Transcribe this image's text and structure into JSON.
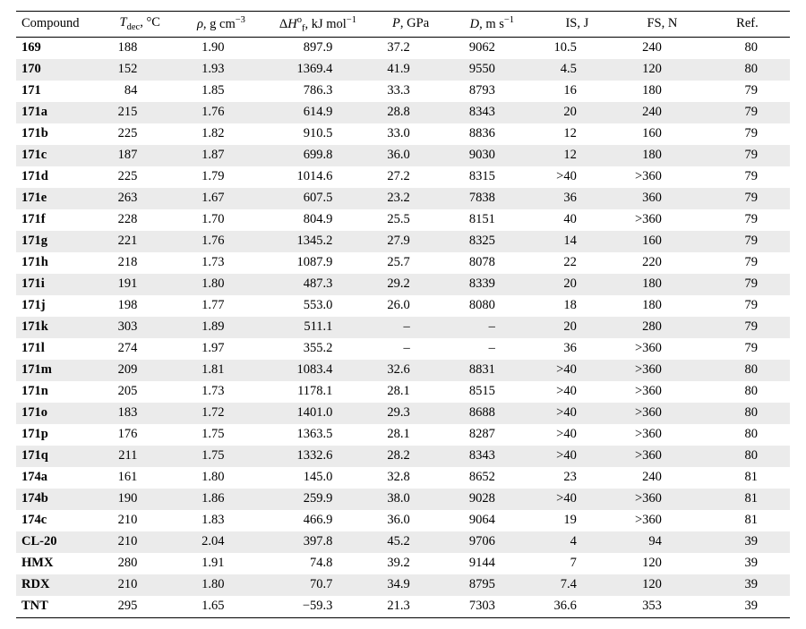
{
  "table": {
    "font_family": "Times New Roman",
    "font_size_pt": 11,
    "background_color": "#ffffff",
    "row_shade_color": "#ebebeb",
    "rule_color": "#000000",
    "columns": [
      {
        "key": "compound",
        "label_html": "Compound",
        "align": "left",
        "bold_cells": true
      },
      {
        "key": "tdec",
        "label_html": "<i>T</i><span class=\"sub\">dec</span>, °C"
      },
      {
        "key": "rho",
        "label_html": "<i>ρ</i>, g cm<span class=\"sup\">−3</span>"
      },
      {
        "key": "dhf",
        "label_html": "Δ<i>H</i><span class=\"sup\">o</span><span class=\"sub\">f</span>, kJ mol<span class=\"sup\">−1</span>"
      },
      {
        "key": "p",
        "label_html": "<i>P</i>, GPa"
      },
      {
        "key": "d",
        "label_html": "<i>D</i>, m s<span class=\"sup\">−1</span>"
      },
      {
        "key": "is",
        "label_html": "IS, J"
      },
      {
        "key": "fs",
        "label_html": "FS, N"
      },
      {
        "key": "ref",
        "label_html": "Ref."
      }
    ],
    "rows": [
      {
        "compound": "169",
        "tdec": "188",
        "rho": "1.90",
        "dhf": "897.9",
        "p": "37.2",
        "d": "9062",
        "is": "10.5",
        "fs": "240",
        "ref": "80"
      },
      {
        "compound": "170",
        "tdec": "152",
        "rho": "1.93",
        "dhf": "1369.4",
        "p": "41.9",
        "d": "9550",
        "is": "4.5",
        "fs": "120",
        "ref": "80"
      },
      {
        "compound": "171",
        "tdec": "84",
        "rho": "1.85",
        "dhf": "786.3",
        "p": "33.3",
        "d": "8793",
        "is": "16",
        "fs": "180",
        "ref": "79"
      },
      {
        "compound": "171a",
        "tdec": "215",
        "rho": "1.76",
        "dhf": "614.9",
        "p": "28.8",
        "d": "8343",
        "is": "20",
        "fs": "240",
        "ref": "79"
      },
      {
        "compound": "171b",
        "tdec": "225",
        "rho": "1.82",
        "dhf": "910.5",
        "p": "33.0",
        "d": "8836",
        "is": "12",
        "fs": "160",
        "ref": "79"
      },
      {
        "compound": "171c",
        "tdec": "187",
        "rho": "1.87",
        "dhf": "699.8",
        "p": "36.0",
        "d": "9030",
        "is": "12",
        "fs": "180",
        "ref": "79"
      },
      {
        "compound": "171d",
        "tdec": "225",
        "rho": "1.79",
        "dhf": "1014.6",
        "p": "27.2",
        "d": "8315",
        "is": ">40",
        "fs": ">360",
        "ref": "79"
      },
      {
        "compound": "171e",
        "tdec": "263",
        "rho": "1.67",
        "dhf": "607.5",
        "p": "23.2",
        "d": "7838",
        "is": "36",
        "fs": "360",
        "ref": "79"
      },
      {
        "compound": "171f",
        "tdec": "228",
        "rho": "1.70",
        "dhf": "804.9",
        "p": "25.5",
        "d": "8151",
        "is": "40",
        "fs": ">360",
        "ref": "79"
      },
      {
        "compound": "171g",
        "tdec": "221",
        "rho": "1.76",
        "dhf": "1345.2",
        "p": "27.9",
        "d": "8325",
        "is": "14",
        "fs": "160",
        "ref": "79"
      },
      {
        "compound": "171h",
        "tdec": "218",
        "rho": "1.73",
        "dhf": "1087.9",
        "p": "25.7",
        "d": "8078",
        "is": "22",
        "fs": "220",
        "ref": "79"
      },
      {
        "compound": "171i",
        "tdec": "191",
        "rho": "1.80",
        "dhf": "487.3",
        "p": "29.2",
        "d": "8339",
        "is": "20",
        "fs": "180",
        "ref": "79"
      },
      {
        "compound": "171j",
        "tdec": "198",
        "rho": "1.77",
        "dhf": "553.0",
        "p": "26.0",
        "d": "8080",
        "is": "18",
        "fs": "180",
        "ref": "79"
      },
      {
        "compound": "171k",
        "tdec": "303",
        "rho": "1.89",
        "dhf": "511.1",
        "p": "–",
        "d": "–",
        "is": "20",
        "fs": "280",
        "ref": "79"
      },
      {
        "compound": "171l",
        "tdec": "274",
        "rho": "1.97",
        "dhf": "355.2",
        "p": "–",
        "d": "–",
        "is": "36",
        "fs": ">360",
        "ref": "79"
      },
      {
        "compound": "171m",
        "tdec": "209",
        "rho": "1.81",
        "dhf": "1083.4",
        "p": "32.6",
        "d": "8831",
        "is": ">40",
        "fs": ">360",
        "ref": "80"
      },
      {
        "compound": "171n",
        "tdec": "205",
        "rho": "1.73",
        "dhf": "1178.1",
        "p": "28.1",
        "d": "8515",
        "is": ">40",
        "fs": ">360",
        "ref": "80"
      },
      {
        "compound": "171o",
        "tdec": "183",
        "rho": "1.72",
        "dhf": "1401.0",
        "p": "29.3",
        "d": "8688",
        "is": ">40",
        "fs": ">360",
        "ref": "80"
      },
      {
        "compound": "171p",
        "tdec": "176",
        "rho": "1.75",
        "dhf": "1363.5",
        "p": "28.1",
        "d": "8287",
        "is": ">40",
        "fs": ">360",
        "ref": "80"
      },
      {
        "compound": "171q",
        "tdec": "211",
        "rho": "1.75",
        "dhf": "1332.6",
        "p": "28.2",
        "d": "8343",
        "is": ">40",
        "fs": ">360",
        "ref": "80"
      },
      {
        "compound": "174a",
        "tdec": "161",
        "rho": "1.80",
        "dhf": "145.0",
        "p": "32.8",
        "d": "8652",
        "is": "23",
        "fs": "240",
        "ref": "81"
      },
      {
        "compound": "174b",
        "tdec": "190",
        "rho": "1.86",
        "dhf": "259.9",
        "p": "38.0",
        "d": "9028",
        "is": ">40",
        "fs": ">360",
        "ref": "81"
      },
      {
        "compound": "174c",
        "tdec": "210",
        "rho": "1.83",
        "dhf": "466.9",
        "p": "36.0",
        "d": "9064",
        "is": "19",
        "fs": ">360",
        "ref": "81"
      },
      {
        "compound": "CL-20",
        "tdec": "210",
        "rho": "2.04",
        "dhf": "397.8",
        "p": "45.2",
        "d": "9706",
        "is": "4",
        "fs": "94",
        "ref": "39"
      },
      {
        "compound": "HMX",
        "tdec": "280",
        "rho": "1.91",
        "dhf": "74.8",
        "p": "39.2",
        "d": "9144",
        "is": "7",
        "fs": "120",
        "ref": "39"
      },
      {
        "compound": "RDX",
        "tdec": "210",
        "rho": "1.80",
        "dhf": "70.7",
        "p": "34.9",
        "d": "8795",
        "is": "7.4",
        "fs": "120",
        "ref": "39"
      },
      {
        "compound": "TNT",
        "tdec": "295",
        "rho": "1.65",
        "dhf": "−59.3",
        "p": "21.3",
        "d": "7303",
        "is": "36.6",
        "fs": "353",
        "ref": "39"
      }
    ]
  }
}
